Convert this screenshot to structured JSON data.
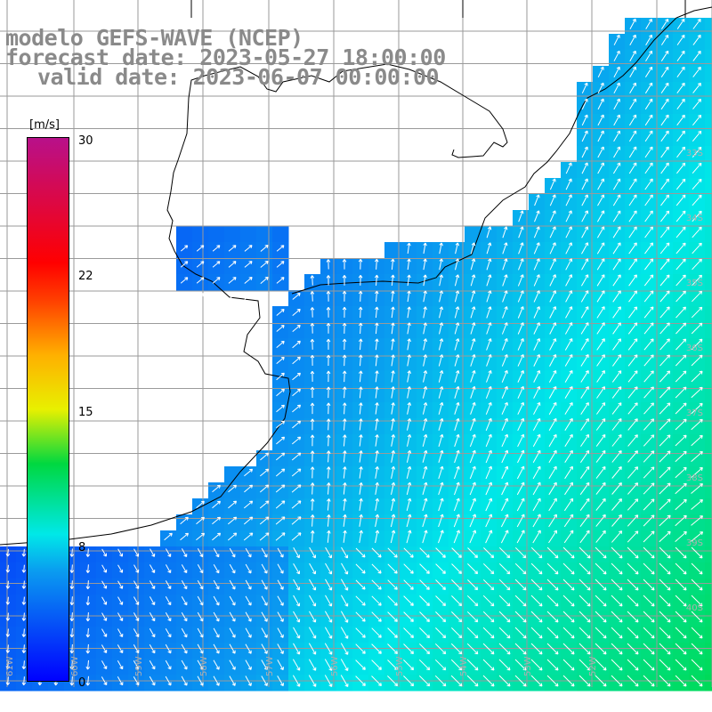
{
  "titles": {
    "line1": "modelo GEFS-WAVE (NCEP)",
    "line2": "forecast date: 2023-05-27 18:00:00",
    "line3": "valid date: 2023-06-07 00:00:00"
  },
  "colorbar": {
    "unit": "[m/s]",
    "ticks": [
      "30",
      "22",
      "15",
      "8",
      "0"
    ],
    "tick_values": [
      30,
      22,
      15,
      8,
      0
    ],
    "min": 0,
    "max": 30
  },
  "map": {
    "variable": "wind speed and direction",
    "grid": true,
    "lat_labels": [
      "33S",
      "34S",
      "35S",
      "36S",
      "37S",
      "38S",
      "39S",
      "40S"
    ],
    "lon_labels": [
      "61W",
      "60W",
      "59W",
      "58W",
      "57W",
      "56W",
      "55W",
      "54W",
      "53W",
      "52W"
    ],
    "colors": {
      "land": "#ffffff",
      "coast": "#000000",
      "grid": "#9a9a9a",
      "arrows": "#ffffff"
    },
    "wind_notes": "weakest winds (deep blue) near the coast and at the bottom-left; strongest (green) toward the lower right; arrows mostly toward the north"
  }
}
